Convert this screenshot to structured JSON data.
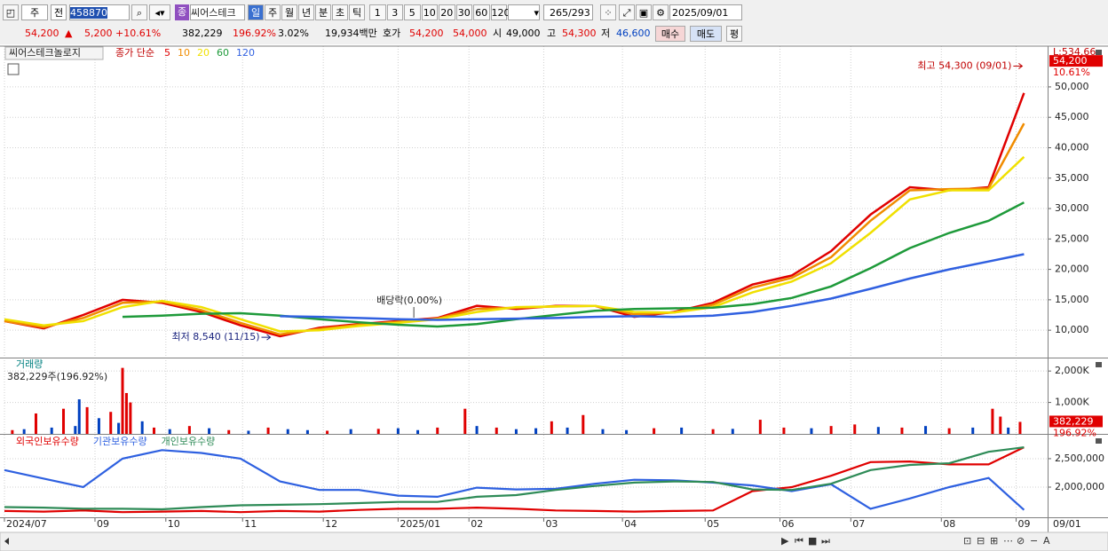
{
  "toolbar": {
    "market": "주",
    "prev": "전",
    "code": "458870",
    "badge": "종",
    "name": "씨어스테크",
    "periods": [
      "일",
      "주",
      "월",
      "년",
      "분",
      "초",
      "틱"
    ],
    "intervals": [
      "1",
      "3",
      "5",
      "10",
      "20",
      "30",
      "60",
      "120"
    ],
    "count": "265",
    "total": "/293",
    "date": "2025/09/01"
  },
  "quote": {
    "price": "54,200",
    "arrow": "▲",
    "change": "5,200",
    "rate": "+10.61%",
    "volume": "382,229",
    "volume_rate": "196.92%",
    "turnover": "3.02%",
    "amount": "19,934백만",
    "ask_label": "호가",
    "ask": "54,200",
    "bid": "54,000",
    "open_label": "시",
    "open": "49,000",
    "high_label": "고",
    "high": "54,300",
    "low_label": "저",
    "low": "46,600",
    "buy": "매수",
    "sell": "매도",
    "avg": "평"
  },
  "chart_data": [
    {
      "type": "line",
      "title": "씨어스테크놀로지",
      "subtitle": "종가 단순",
      "axis_note": "L:534.66",
      "xlim": [
        0,
        265
      ],
      "ylim": [
        5500,
        56700
      ],
      "yticks": [
        {
          "value": 10000,
          "label": "10,000"
        },
        {
          "value": 15000,
          "label": "15,000"
        },
        {
          "value": 20000,
          "label": "20,000"
        },
        {
          "value": 25000,
          "label": "25,000"
        },
        {
          "value": 30000,
          "label": "30,000"
        },
        {
          "value": 35000,
          "label": "35,000"
        },
        {
          "value": 40000,
          "label": "40,000"
        },
        {
          "value": 45000,
          "label": "45,000"
        },
        {
          "value": 50000,
          "label": "50,000"
        }
      ],
      "last": {
        "value": 54200,
        "label": "54,200"
      },
      "last_change": "10.61%",
      "annotations": [
        {
          "text": "최고 54,300 (09/01)",
          "x": 259,
          "y": 54300
        },
        {
          "text": "최저 8,540 (11/15)",
          "x": 68,
          "y": 8540
        },
        {
          "text": "배당락(0.00%)",
          "x": 104
        }
      ],
      "x": [
        0,
        10,
        20,
        30,
        40,
        50,
        60,
        70,
        80,
        90,
        100,
        110,
        120,
        130,
        140,
        150,
        160,
        170,
        180,
        190,
        200,
        210,
        220,
        230,
        240,
        250,
        259
      ],
      "series": [
        {
          "name": "5",
          "color": "#e00000",
          "values": [
            11500,
            10300,
            12500,
            15000,
            14500,
            13000,
            10800,
            9000,
            10400,
            11000,
            11500,
            12000,
            14000,
            13500,
            14000,
            14000,
            12200,
            13000,
            14500,
            17500,
            19000,
            23000,
            29000,
            33500,
            33000,
            33500,
            49000
          ]
        },
        {
          "name": "10",
          "color": "#f08c00",
          "values": [
            11500,
            10500,
            12000,
            14500,
            14700,
            13300,
            11200,
            9300,
            10200,
            10900,
            11400,
            11900,
            13500,
            13700,
            13900,
            14000,
            12600,
            12900,
            14200,
            17000,
            18600,
            22000,
            28000,
            33000,
            33200,
            33300,
            44000
          ]
        },
        {
          "name": "20",
          "color": "#f0e000",
          "values": [
            11800,
            10800,
            11500,
            13800,
            14800,
            13800,
            11800,
            9800,
            10000,
            10700,
            11200,
            11800,
            13000,
            13800,
            13900,
            14000,
            13000,
            12900,
            13800,
            16200,
            18000,
            21000,
            26000,
            31500,
            33000,
            33000,
            38500
          ]
        },
        {
          "name": "60",
          "color": "#1e9a3a",
          "values": [
            null,
            null,
            null,
            12200,
            12400,
            12700,
            12800,
            12400,
            11800,
            11300,
            10900,
            10600,
            11000,
            11800,
            12500,
            13200,
            13500,
            13600,
            13700,
            14300,
            15300,
            17200,
            20200,
            23500,
            26000,
            28000,
            31000
          ]
        },
        {
          "name": "120",
          "color": "#3060e0",
          "values": [
            null,
            null,
            null,
            null,
            null,
            null,
            null,
            12300,
            12200,
            12000,
            11800,
            11700,
            11800,
            11900,
            12000,
            12200,
            12300,
            12200,
            12400,
            13000,
            14000,
            15200,
            16800,
            18500,
            20000,
            21300,
            22500
          ]
        }
      ]
    },
    {
      "type": "bar",
      "title": "거래량",
      "subtitle": "382,229주(196.92%)",
      "xlim": [
        0,
        265
      ],
      "ylim": [
        0,
        2400000
      ],
      "yticks": [
        {
          "value": 1000000,
          "label": "1,000K"
        },
        {
          "value": 2000000,
          "label": "2,000K"
        }
      ],
      "last": {
        "value": 382229,
        "label": "382,229"
      },
      "last_change": "196.92%",
      "x": [
        2,
        5,
        8,
        12,
        15,
        18,
        19,
        21,
        24,
        27,
        29,
        30,
        31,
        32,
        35,
        38,
        42,
        47,
        52,
        57,
        62,
        67,
        72,
        77,
        82,
        88,
        95,
        100,
        105,
        110,
        117,
        120,
        125,
        130,
        135,
        139,
        143,
        147,
        152,
        158,
        165,
        172,
        180,
        185,
        192,
        198,
        205,
        210,
        216,
        222,
        228,
        234,
        240,
        246,
        251,
        253,
        255,
        258
      ],
      "values": [
        120000,
        150000,
        650000,
        200000,
        800000,
        250000,
        1100000,
        850000,
        500000,
        700000,
        350000,
        2100000,
        1300000,
        1000000,
        400000,
        200000,
        150000,
        250000,
        180000,
        120000,
        100000,
        200000,
        150000,
        120000,
        100000,
        150000,
        160000,
        180000,
        120000,
        200000,
        800000,
        250000,
        200000,
        150000,
        180000,
        400000,
        200000,
        600000,
        150000,
        120000,
        180000,
        200000,
        150000,
        160000,
        450000,
        200000,
        180000,
        250000,
        300000,
        220000,
        200000,
        250000,
        180000,
        200000,
        800000,
        550000,
        200000,
        382229
      ],
      "colors": [
        "#e00000",
        "#0040c0",
        "#e00000",
        "#0040c0",
        "#e00000",
        "#0040c0",
        "#0040c0",
        "#e00000",
        "#0040c0",
        "#e00000",
        "#0040c0",
        "#e00000",
        "#e00000",
        "#e00000",
        "#0040c0",
        "#e00000",
        "#0040c0",
        "#e00000",
        "#0040c0",
        "#e00000",
        "#0040c0",
        "#e00000",
        "#0040c0",
        "#0040c0",
        "#e00000",
        "#0040c0",
        "#e00000",
        "#0040c0",
        "#0040c0",
        "#e00000",
        "#e00000",
        "#0040c0",
        "#e00000",
        "#0040c0",
        "#0040c0",
        "#e00000",
        "#0040c0",
        "#e00000",
        "#0040c0",
        "#0040c0",
        "#e00000",
        "#0040c0",
        "#e00000",
        "#0040c0",
        "#e00000",
        "#e00000",
        "#0040c0",
        "#e00000",
        "#e00000",
        "#0040c0",
        "#e00000",
        "#0040c0",
        "#e00000",
        "#0040c0",
        "#e00000",
        "#e00000",
        "#0040c0",
        "#e00000"
      ]
    },
    {
      "type": "line",
      "xlim": [
        0,
        265
      ],
      "ylim": [
        1470000,
        2920000
      ],
      "yticks": [
        {
          "value": 2000000,
          "label": "2,000,000"
        },
        {
          "value": 2500000,
          "label": "2,500,000"
        }
      ],
      "xticks": [
        {
          "value": 0,
          "label": "2024/07"
        },
        {
          "value": 23,
          "label": "09"
        },
        {
          "value": 41,
          "label": "10"
        },
        {
          "value": 60.5,
          "label": "11"
        },
        {
          "value": 81,
          "label": "12"
        },
        {
          "value": 100,
          "label": "2025/01"
        },
        {
          "value": 118,
          "label": "02"
        },
        {
          "value": 137,
          "label": "03"
        },
        {
          "value": 157,
          "label": "04"
        },
        {
          "value": 178,
          "label": "05"
        },
        {
          "value": 197,
          "label": "06"
        },
        {
          "value": 215,
          "label": "07"
        },
        {
          "value": 238,
          "label": "08"
        },
        {
          "value": 257,
          "label": "09"
        }
      ],
      "x_end_label": "09/01",
      "x": [
        0,
        10,
        20,
        30,
        40,
        50,
        60,
        70,
        80,
        90,
        100,
        110,
        120,
        130,
        140,
        150,
        160,
        170,
        180,
        190,
        200,
        210,
        220,
        230,
        240,
        250,
        259
      ],
      "series": [
        {
          "name": "외국인보유수량",
          "color": "#e00000",
          "values": [
            1580000,
            1570000,
            1590000,
            1560000,
            1570000,
            1580000,
            1560000,
            1580000,
            1570000,
            1600000,
            1620000,
            1620000,
            1640000,
            1620000,
            1590000,
            1580000,
            1570000,
            1580000,
            1590000,
            1930000,
            2000000,
            2200000,
            2440000,
            2450000,
            2400000,
            2400000,
            2700000
          ]
        },
        {
          "name": "기관보유수량",
          "color": "#2e60e0",
          "values": [
            2300000,
            2150000,
            2000000,
            2500000,
            2650000,
            2600000,
            2500000,
            2100000,
            1950000,
            1950000,
            1850000,
            1830000,
            1990000,
            1960000,
            1970000,
            2060000,
            2130000,
            2120000,
            2080000,
            2030000,
            1930000,
            2050000,
            1620000,
            1800000,
            2000000,
            2160000,
            1600000
          ]
        },
        {
          "name": "개인보유수량",
          "color": "#2e8b57",
          "values": [
            1650000,
            1640000,
            1620000,
            1620000,
            1610000,
            1650000,
            1680000,
            1690000,
            1700000,
            1720000,
            1740000,
            1740000,
            1830000,
            1860000,
            1950000,
            2020000,
            2080000,
            2100000,
            2090000,
            1960000,
            1950000,
            2060000,
            2300000,
            2390000,
            2420000,
            2620000,
            2700000
          ]
        }
      ]
    }
  ]
}
